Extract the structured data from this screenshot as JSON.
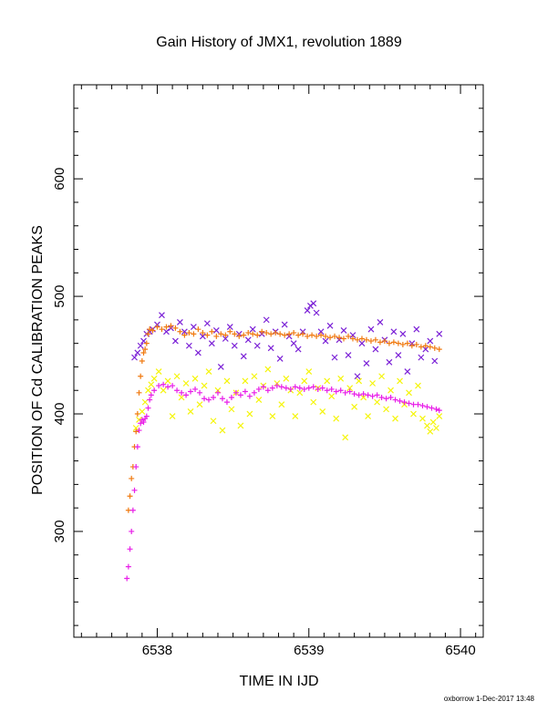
{
  "chart_data": {
    "type": "scatter",
    "title": "Gain History of JMX1, revolution 1889",
    "xlabel": "TIME IN IJD",
    "ylabel": "POSITION OF Cd CALIBRATION PEAKS",
    "xlim": [
      6537.45,
      6540.15
    ],
    "ylim": [
      210,
      680
    ],
    "xticks": [
      6538,
      6539,
      6540
    ],
    "yticks": [
      300,
      400,
      500,
      600
    ],
    "grid": false,
    "legend": "none",
    "series": [
      {
        "marker": "x",
        "color": "#7a1fd6",
        "x": [
          6537.85,
          6537.87,
          6537.89,
          6537.91,
          6537.93,
          6537.95,
          6537.97,
          6538.0,
          6538.03,
          6538.06,
          6538.09,
          6538.12,
          6538.15,
          6538.18,
          6538.21,
          6538.24,
          6538.27,
          6538.3,
          6538.33,
          6538.36,
          6538.39,
          6538.42,
          6538.45,
          6538.48,
          6538.51,
          6538.54,
          6538.57,
          6538.6,
          6538.63,
          6538.66,
          6538.69,
          6538.72,
          6538.75,
          6538.78,
          6538.81,
          6538.84,
          6538.87,
          6538.9,
          6538.93,
          6538.96,
          6538.99,
          6539.01,
          6539.03,
          6539.05,
          6539.08,
          6539.11,
          6539.14,
          6539.17,
          6539.2,
          6539.23,
          6539.26,
          6539.29,
          6539.32,
          6539.35,
          6539.38,
          6539.41,
          6539.44,
          6539.47,
          6539.5,
          6539.53,
          6539.56,
          6539.59,
          6539.62,
          6539.65,
          6539.68,
          6539.71,
          6539.74,
          6539.77,
          6539.8,
          6539.83,
          6539.86
        ],
        "y": [
          448,
          452,
          458,
          462,
          468,
          470,
          472,
          476,
          484,
          470,
          473,
          462,
          478,
          470,
          458,
          474,
          452,
          466,
          477,
          460,
          471,
          440,
          464,
          474,
          458,
          468,
          449,
          463,
          472,
          458,
          468,
          480,
          456,
          470,
          447,
          476,
          466,
          460,
          455,
          470,
          488,
          492,
          494,
          486,
          470,
          462,
          475,
          448,
          463,
          471,
          450,
          467,
          432,
          460,
          443,
          472,
          455,
          478,
          463,
          444,
          470,
          450,
          468,
          436,
          460,
          472,
          448,
          455,
          462,
          445,
          468
        ]
      },
      {
        "marker": "+",
        "color": "#f07a10",
        "x": [
          6537.81,
          6537.82,
          6537.83,
          6537.84,
          6537.85,
          6537.86,
          6537.87,
          6537.88,
          6537.89,
          6537.9,
          6537.91,
          6537.92,
          6537.93,
          6537.94,
          6537.95,
          6537.97,
          6538.0,
          6538.03,
          6538.06,
          6538.09,
          6538.12,
          6538.15,
          6538.18,
          6538.21,
          6538.24,
          6538.27,
          6538.3,
          6538.33,
          6538.36,
          6538.39,
          6538.42,
          6538.45,
          6538.48,
          6538.51,
          6538.54,
          6538.57,
          6538.6,
          6538.63,
          6538.66,
          6538.69,
          6538.72,
          6538.75,
          6538.78,
          6538.81,
          6538.84,
          6538.87,
          6538.9,
          6538.93,
          6538.96,
          6538.99,
          6539.02,
          6539.05,
          6539.08,
          6539.11,
          6539.14,
          6539.17,
          6539.2,
          6539.23,
          6539.26,
          6539.29,
          6539.32,
          6539.35,
          6539.38,
          6539.41,
          6539.44,
          6539.47,
          6539.5,
          6539.53,
          6539.56,
          6539.59,
          6539.62,
          6539.65,
          6539.68,
          6539.71,
          6539.74,
          6539.77,
          6539.8,
          6539.83,
          6539.86
        ],
        "y": [
          318,
          330,
          345,
          355,
          372,
          385,
          400,
          418,
          432,
          445,
          452,
          455,
          460,
          468,
          472,
          471,
          474,
          472,
          474,
          475,
          473,
          470,
          467,
          469,
          468,
          472,
          469,
          467,
          470,
          466,
          468,
          467,
          470,
          468,
          466,
          467,
          469,
          468,
          467,
          470,
          469,
          468,
          469,
          468,
          467,
          468,
          469,
          467,
          468,
          466,
          467,
          466,
          467,
          466,
          465,
          466,
          465,
          464,
          466,
          464,
          463,
          464,
          463,
          462,
          463,
          461,
          462,
          460,
          461,
          460,
          459,
          460,
          458,
          459,
          457,
          458,
          457,
          456,
          455
        ]
      },
      {
        "marker": "x",
        "color": "#f5f50a",
        "x": [
          6537.86,
          6537.88,
          6537.9,
          6537.92,
          6537.94,
          6537.96,
          6537.98,
          6538.01,
          6538.04,
          6538.07,
          6538.1,
          6538.13,
          6538.16,
          6538.19,
          6538.22,
          6538.25,
          6538.28,
          6538.31,
          6538.34,
          6538.37,
          6538.4,
          6538.43,
          6538.46,
          6538.49,
          6538.52,
          6538.55,
          6538.58,
          6538.61,
          6538.64,
          6538.67,
          6538.7,
          6538.73,
          6538.76,
          6538.79,
          6538.82,
          6538.85,
          6538.88,
          6538.91,
          6538.94,
          6538.97,
          6539.0,
          6539.03,
          6539.06,
          6539.09,
          6539.12,
          6539.15,
          6539.18,
          6539.21,
          6539.24,
          6539.27,
          6539.3,
          6539.33,
          6539.36,
          6539.39,
          6539.42,
          6539.45,
          6539.48,
          6539.51,
          6539.54,
          6539.57,
          6539.6,
          6539.63,
          6539.66,
          6539.69,
          6539.72,
          6539.75,
          6539.78,
          6539.8,
          6539.82,
          6539.84,
          6539.86
        ],
        "y": [
          388,
          395,
          402,
          410,
          420,
          425,
          430,
          436,
          420,
          428,
          398,
          432,
          414,
          426,
          402,
          430,
          408,
          424,
          436,
          394,
          420,
          386,
          428,
          404,
          418,
          390,
          428,
          400,
          432,
          412,
          424,
          438,
          398,
          426,
          408,
          430,
          420,
          398,
          418,
          428,
          436,
          410,
          422,
          402,
          428,
          415,
          396,
          430,
          380,
          422,
          406,
          428,
          414,
          398,
          426,
          410,
          432,
          404,
          420,
          396,
          428,
          408,
          418,
          400,
          424,
          396,
          390,
          385,
          393,
          388,
          398
        ]
      },
      {
        "marker": "+",
        "color": "#e81ee8",
        "x": [
          6537.8,
          6537.81,
          6537.82,
          6537.83,
          6537.84,
          6537.85,
          6537.86,
          6537.87,
          6537.88,
          6537.89,
          6537.9,
          6537.91,
          6537.92,
          6537.93,
          6537.94,
          6537.95,
          6537.96,
          6537.98,
          6538.01,
          6538.04,
          6538.07,
          6538.1,
          6538.13,
          6538.16,
          6538.19,
          6538.22,
          6538.25,
          6538.28,
          6538.31,
          6538.34,
          6538.37,
          6538.4,
          6538.43,
          6538.46,
          6538.49,
          6538.52,
          6538.55,
          6538.58,
          6538.61,
          6538.64,
          6538.67,
          6538.7,
          6538.73,
          6538.76,
          6538.79,
          6538.82,
          6538.85,
          6538.88,
          6538.91,
          6538.94,
          6538.97,
          6539.0,
          6539.03,
          6539.06,
          6539.09,
          6539.12,
          6539.15,
          6539.18,
          6539.21,
          6539.24,
          6539.27,
          6539.3,
          6539.33,
          6539.36,
          6539.39,
          6539.42,
          6539.45,
          6539.48,
          6539.51,
          6539.54,
          6539.57,
          6539.6,
          6539.63,
          6539.66,
          6539.69,
          6539.72,
          6539.75,
          6539.78,
          6539.81,
          6539.84,
          6539.86
        ],
        "y": [
          260,
          270,
          285,
          300,
          318,
          335,
          355,
          372,
          386,
          392,
          395,
          393,
          396,
          398,
          405,
          412,
          416,
          420,
          424,
          425,
          423,
          424,
          420,
          418,
          416,
          419,
          421,
          418,
          413,
          412,
          414,
          418,
          413,
          410,
          414,
          418,
          416,
          419,
          415,
          418,
          421,
          423,
          420,
          422,
          424,
          423,
          422,
          421,
          423,
          422,
          421,
          422,
          423,
          421,
          422,
          420,
          421,
          419,
          420,
          418,
          419,
          417,
          416,
          417,
          416,
          415,
          416,
          414,
          413,
          414,
          412,
          411,
          410,
          409,
          408,
          408,
          407,
          406,
          405,
          404,
          403
        ]
      }
    ]
  },
  "credit": "oxborrow 1-Dec-2017 13:48"
}
